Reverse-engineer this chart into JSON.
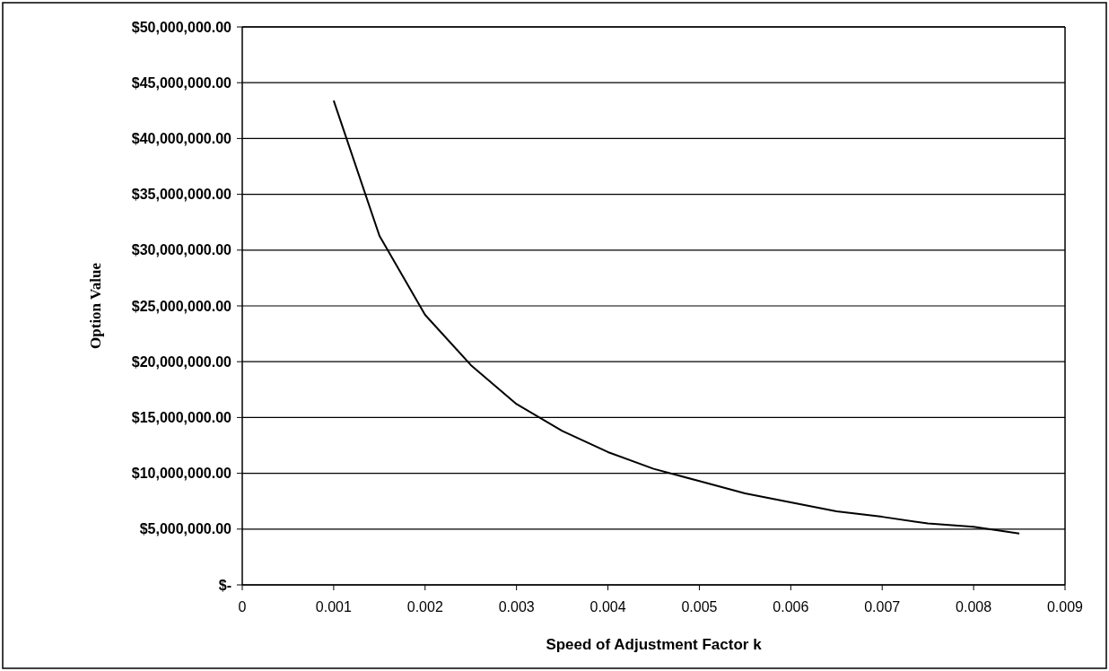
{
  "chart_data": {
    "type": "line",
    "xlabel": "Speed of Adjustment Factor k",
    "ylabel": "Option Value",
    "x": [
      0.001,
      0.0015,
      0.002,
      0.0025,
      0.003,
      0.0035,
      0.004,
      0.0045,
      0.005,
      0.0055,
      0.006,
      0.0065,
      0.007,
      0.0075,
      0.008,
      0.0085
    ],
    "series": [
      {
        "color": "#000000",
        "values": [
          43400000,
          31300000,
          24200000,
          19700000,
          16200000,
          13800000,
          11900000,
          10400000,
          9300000,
          8200000,
          7400000,
          6600000,
          6100000,
          5500000,
          5200000,
          4600000
        ]
      }
    ],
    "xlim": [
      0,
      0.009
    ],
    "xticks": [
      0,
      0.001,
      0.002,
      0.003,
      0.004,
      0.005,
      0.006,
      0.007,
      0.008,
      0.009
    ],
    "ylim": [
      0,
      50000000
    ],
    "yticks": [
      {
        "value": 0,
        "label": "$-"
      },
      {
        "value": 5000000,
        "label": "$5,000,000.00"
      },
      {
        "value": 10000000,
        "label": "$10,000,000.00"
      },
      {
        "value": 15000000,
        "label": "$15,000,000.00"
      },
      {
        "value": 20000000,
        "label": "$20,000,000.00"
      },
      {
        "value": 25000000,
        "label": "$25,000,000.00"
      },
      {
        "value": 30000000,
        "label": "$30,000,000.00"
      },
      {
        "value": 35000000,
        "label": "$35,000,000.00"
      },
      {
        "value": 40000000,
        "label": "$40,000,000.00"
      },
      {
        "value": 45000000,
        "label": "$45,000,000.00"
      },
      {
        "value": 50000000,
        "label": "$50,000,000.00"
      }
    ],
    "grid": "y",
    "marker": "none",
    "line_style": "solid"
  }
}
